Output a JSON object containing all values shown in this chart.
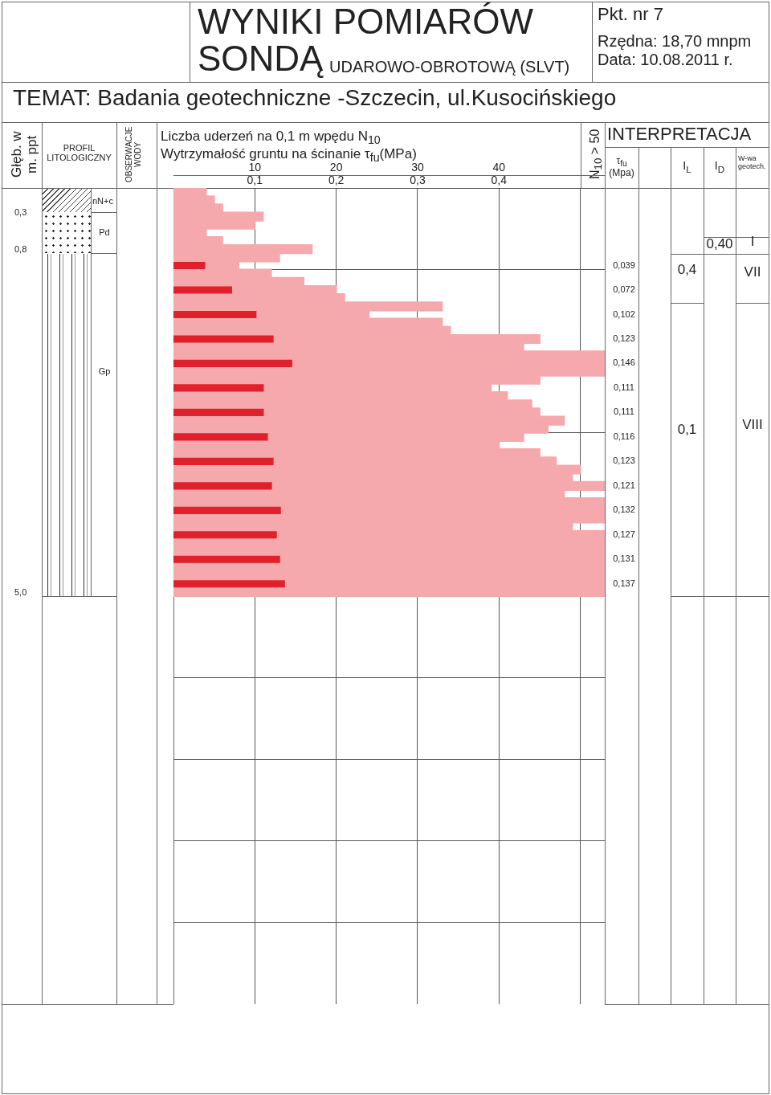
{
  "chart_data": {
    "type": "bar",
    "orientation": "horizontal",
    "title": "WYNIKI POMIARÓW SONDĄ",
    "subtitle": "TEMAT: Badania geotechniczne -Szczecin, ul.Kusocińskiego",
    "xlabel": "Liczba uderzeń na 0,1 m wpędu N$_{10}$",
    "x2label": "Wytrzymałość gruntu na ścinanie τ$_{fu}$(MPa)",
    "annotations": [
      "UDAROWO-OBROTOWĄ (SLVT)",
      "Pkt. nr 7",
      "Rzędna: 18,70 mnpm",
      "Data: 10.08.2011 r.",
      "Głęb. w m. ppt",
      "PROFIL LITOLOGICZNY",
      "OBSERWACJE WODY",
      "N$_{10}$ > 50",
      "INTERPRETACJA",
      "τ$_{fu}$ (Mpa)",
      "I$_{L}$",
      "I$_{D}$",
      "W-wa geotech.",
      "0,3",
      "0,8",
      "5,0",
      "nN+c",
      "Pd",
      "Gp",
      "0,40",
      "I",
      "0,4",
      "VII",
      "0,1",
      "VIII"
    ],
    "categories": [
      null,
      null,
      null,
      null,
      null,
      null,
      null,
      null,
      null,
      null,
      null,
      null,
      null,
      null,
      null,
      null,
      null,
      null,
      null,
      null,
      null,
      null,
      null,
      null,
      null,
      null,
      null,
      null,
      null,
      null,
      null,
      null,
      null,
      null,
      null,
      null,
      null,
      null,
      null,
      null,
      null,
      null,
      null,
      null,
      null,
      null,
      null,
      null,
      null,
      null,
      null,
      null,
      null,
      null,
      null,
      null,
      null,
      null,
      null,
      null,
      null,
      null,
      null,
      null,
      null,
      null,
      null,
      null,
      null,
      null,
      null,
      null,
      null,
      null,
      null,
      null,
      null,
      null,
      null,
      null,
      null,
      null,
      null,
      null,
      null,
      null,
      null,
      null,
      null,
      null,
      null,
      null,
      null,
      null,
      null,
      null,
      null,
      null,
      null,
      null
    ],
    "series": [
      {
        "color": "#f5a9ac",
        "values": [
          4,
          5,
          6,
          11,
          10,
          4,
          6,
          17,
          13,
          8,
          12,
          16,
          20,
          21,
          33,
          24,
          33,
          34,
          45,
          43,
          53,
          53,
          53,
          45,
          39,
          41,
          44,
          45,
          48,
          46,
          43,
          40,
          45,
          47,
          50,
          49,
          53,
          48,
          53,
          53,
          53,
          49,
          53,
          53,
          53,
          53,
          53,
          53,
          53,
          53,
          null,
          null,
          null,
          null,
          null,
          null,
          null,
          null,
          null,
          null,
          null,
          null,
          null,
          null,
          null,
          null,
          null,
          null,
          null,
          null,
          null,
          null,
          null,
          null,
          null,
          null,
          null,
          null,
          null,
          null,
          null,
          null,
          null,
          null,
          null,
          null,
          null,
          null,
          null,
          null,
          null,
          null,
          null,
          null,
          null,
          null,
          null,
          null,
          null,
          null
        ]
      },
      {
        "color": "#e0202a",
        "axis": "x2",
        "values": [
          null,
          null,
          null,
          null,
          null,
          null,
          null,
          null,
          null,
          0.039,
          null,
          null,
          0.072,
          null,
          null,
          0.102,
          null,
          null,
          0.123,
          null,
          null,
          0.146,
          null,
          null,
          0.111,
          null,
          null,
          0.111,
          null,
          null,
          0.116,
          null,
          null,
          0.123,
          null,
          null,
          0.121,
          null,
          null,
          0.132,
          null,
          null,
          0.127,
          null,
          null,
          0.131,
          null,
          null,
          0.137,
          null,
          null,
          null,
          null,
          null,
          null,
          null,
          null,
          null,
          null,
          null,
          null,
          null,
          null,
          null,
          null,
          null,
          null,
          null,
          null,
          null,
          null,
          null,
          null,
          null,
          null,
          null,
          null,
          null,
          null,
          null,
          null,
          null,
          null,
          null,
          null,
          null,
          null,
          null,
          null,
          null,
          null,
          null,
          null,
          null,
          null,
          null,
          null,
          null,
          null,
          null
        ],
        "value_labels": [
          null,
          null,
          null,
          null,
          null,
          null,
          null,
          null,
          null,
          "0,039",
          null,
          null,
          "0,072",
          null,
          null,
          "0,102",
          null,
          null,
          "0,123",
          null,
          null,
          "0,146",
          null,
          null,
          "0,111",
          null,
          null,
          "0,111",
          null,
          null,
          "0,116",
          null,
          null,
          "0,123",
          null,
          null,
          "0,121",
          null,
          null,
          "0,132",
          null,
          null,
          "0,127",
          null,
          null,
          "0,131",
          null,
          null,
          "0,137",
          null,
          null,
          null,
          null,
          null,
          null,
          null,
          null,
          null,
          null,
          null,
          null,
          null,
          null,
          null,
          null,
          null,
          null,
          null,
          null,
          null,
          null,
          null,
          null,
          null,
          null,
          null,
          null,
          null,
          null,
          null,
          null,
          null,
          null,
          null,
          null,
          null,
          null,
          null,
          null,
          null,
          null,
          null,
          null,
          null,
          null,
          null,
          null,
          null,
          null,
          null
        ]
      }
    ],
    "xlim": [
      0,
      53
    ],
    "xticks": [
      10,
      20,
      30,
      40,
      {
        "value": 50,
        "label": null
      }
    ],
    "x2lim": [
      0,
      0.53
    ],
    "x2ticks": [
      {
        "value": 0.1,
        "label": "0,1"
      },
      {
        "value": 0.2,
        "label": "0,2"
      },
      {
        "value": 0.3,
        "label": "0,3"
      },
      {
        "value": 0.4,
        "label": "0,4"
      }
    ],
    "grid": true
  }
}
